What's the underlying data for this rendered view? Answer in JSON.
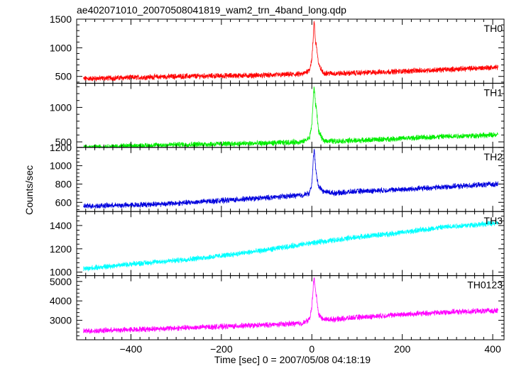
{
  "chart_data": {
    "type": "line",
    "title": "ae402071010_20070508041819_wam2_trn_4band_long.qdp",
    "xlabel": "Time [sec] 0 = 2007/05/08 04:18:19",
    "ylabel": "Counts/sec",
    "xlim": [
      -520,
      425
    ],
    "x_ticks": [
      -400,
      -200,
      0,
      200,
      400
    ],
    "grid": false,
    "panels": [
      {
        "name": "TH0",
        "color": "#ff0000",
        "ylim": [
          380,
          1500
        ],
        "y_ticks": [
          500,
          1000,
          1500
        ],
        "x": [
          -500,
          -400,
          -300,
          -200,
          -100,
          -20,
          -5,
          0,
          3,
          5,
          8,
          10,
          15,
          25,
          50,
          100,
          200,
          300,
          410
        ],
        "values": [
          460,
          480,
          500,
          510,
          520,
          540,
          620,
          800,
          1150,
          1500,
          1100,
          1050,
          700,
          560,
          550,
          560,
          590,
          620,
          660
        ]
      },
      {
        "name": "TH1",
        "color": "#00ee00",
        "ylim": [
          420,
          1350
        ],
        "y_ticks": [
          500,
          1000
        ],
        "x": [
          -500,
          -400,
          -300,
          -200,
          -100,
          -20,
          -5,
          0,
          3,
          5,
          8,
          10,
          15,
          25,
          50,
          100,
          200,
          300,
          410
        ],
        "values": [
          420,
          440,
          460,
          470,
          480,
          500,
          560,
          750,
          1100,
          1320,
          1050,
          1000,
          650,
          520,
          510,
          520,
          550,
          580,
          600
        ]
      },
      {
        "name": "TH2",
        "color": "#0000dd",
        "ylim": [
          500,
          1200
        ],
        "y_ticks": [
          600,
          800,
          1000,
          1200
        ],
        "x": [
          -500,
          -400,
          -300,
          -200,
          -100,
          -20,
          -5,
          0,
          3,
          5,
          8,
          10,
          15,
          25,
          50,
          100,
          200,
          300,
          410
        ],
        "values": [
          560,
          570,
          590,
          620,
          650,
          680,
          700,
          800,
          1050,
          1200,
          1000,
          900,
          780,
          720,
          700,
          720,
          740,
          770,
          800
        ]
      },
      {
        "name": "TH3",
        "color": "#00ffff",
        "ylim": [
          970,
          1520
        ],
        "y_ticks": [
          1000,
          1200,
          1400
        ],
        "x": [
          -500,
          -400,
          -300,
          -200,
          -100,
          0,
          100,
          200,
          300,
          410
        ],
        "values": [
          1030,
          1070,
          1100,
          1140,
          1190,
          1250,
          1300,
          1340,
          1390,
          1420
        ]
      },
      {
        "name": "TH0123",
        "color": "#ff00ff",
        "ylim": [
          2000,
          5300
        ],
        "y_ticks": [
          3000,
          4000,
          5000
        ],
        "x": [
          -500,
          -400,
          -300,
          -200,
          -100,
          -20,
          -5,
          0,
          3,
          5,
          8,
          10,
          15,
          25,
          50,
          100,
          200,
          300,
          410
        ],
        "values": [
          2450,
          2520,
          2600,
          2680,
          2760,
          2850,
          3050,
          3700,
          4700,
          5200,
          4500,
          4300,
          3300,
          3050,
          3050,
          3150,
          3300,
          3420,
          3500
        ]
      }
    ]
  }
}
